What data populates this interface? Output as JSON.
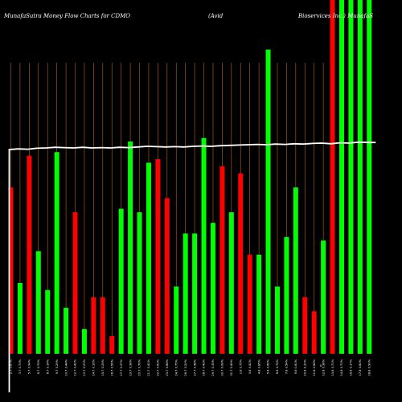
{
  "title": {
    "left": "MunafaSutra  Money Flow  Charts for CDMO",
    "middle": "(Avid",
    "right": "Bioservices Inc.) MunafaS"
  },
  "colors": {
    "background": "#000000",
    "up": "#00ff00",
    "down": "#ff0000",
    "grid": "#b8651e",
    "line": "#ffffff"
  },
  "chart_data": {
    "type": "bar",
    "series": [
      {
        "name": "",
        "direction": [
          "down",
          "up",
          "down",
          "up",
          "up",
          "up",
          "up",
          "down",
          "up",
          "down",
          "down",
          "down",
          "up",
          "up",
          "up",
          "up",
          "down",
          "down",
          "up",
          "up",
          "up",
          "up",
          "up",
          "down",
          "up",
          "down",
          "down",
          "up",
          "up",
          "up",
          "up",
          "up",
          "down",
          "down",
          "up",
          "down",
          "up",
          "up",
          "up",
          "up"
        ],
        "values": [
          47,
          20,
          56,
          29,
          18,
          57,
          13,
          40,
          7,
          16,
          16,
          5,
          41,
          60,
          40,
          54,
          55,
          44,
          19,
          34,
          34,
          61,
          37,
          53,
          40,
          51,
          28,
          28,
          86,
          19,
          33,
          47,
          16,
          12,
          32,
          100,
          100,
          100,
          100,
          100
        ]
      }
    ],
    "x": [
      "2.7 0.67%",
      "3.7 0.73%",
      "5.7 0.94%",
      "6.7 0.79%",
      "8.7 0.14%",
      "9.7 0.29%",
      "10.7 0.44%",
      "12.7 0.42%",
      "13.7 0.23%",
      "14.7 0.16%",
      "15.7 0.25%",
      "16.7 0.56%",
      "17.7 0.27%",
      "19.7 0.38%",
      "20.7 0.76%",
      "21.7 0.41%",
      "22.7 0.63%",
      "23.7 0.88%",
      "24.7 0.75%",
      "26.7 0.20%",
      "27.7 0.48%",
      "28.7 0.43%",
      "29.7 0.35%",
      "30.7 0.08%",
      "31.7 0.49%",
      "2.8 0.75%",
      "3.8 0.41%",
      "4.8 0.85%",
      "5.8 0.66%",
      "6.8 0.74%",
      "7.8 0.54%",
      "9.8 0.61%",
      "10.8 0.33%",
      "11.8 0.68%",
      "12.8 0.38%",
      "13.8 0.71%",
      "14.8 0.73%",
      "16.8 0.17%",
      "17.8 0.82%",
      "18.8 0.90%"
    ],
    "line": [
      78.5,
      78.7,
      78.6,
      78.9,
      79.0,
      79.2,
      79.1,
      79.0,
      79.2,
      79.0,
      79.1,
      79.0,
      79.2,
      79.1,
      79.3,
      79.5,
      79.4,
      79.3,
      79.4,
      79.3,
      79.5,
      79.6,
      79.5,
      79.7,
      79.8,
      79.9,
      80.0,
      80.1,
      80.0,
      80.2,
      80.1,
      80.3,
      80.2,
      80.4,
      80.5,
      80.3,
      80.6,
      80.5,
      80.8,
      80.7
    ],
    "line_start": 3,
    "ylim": [
      0,
      100
    ],
    "grid": true,
    "axis_marker": "$"
  }
}
